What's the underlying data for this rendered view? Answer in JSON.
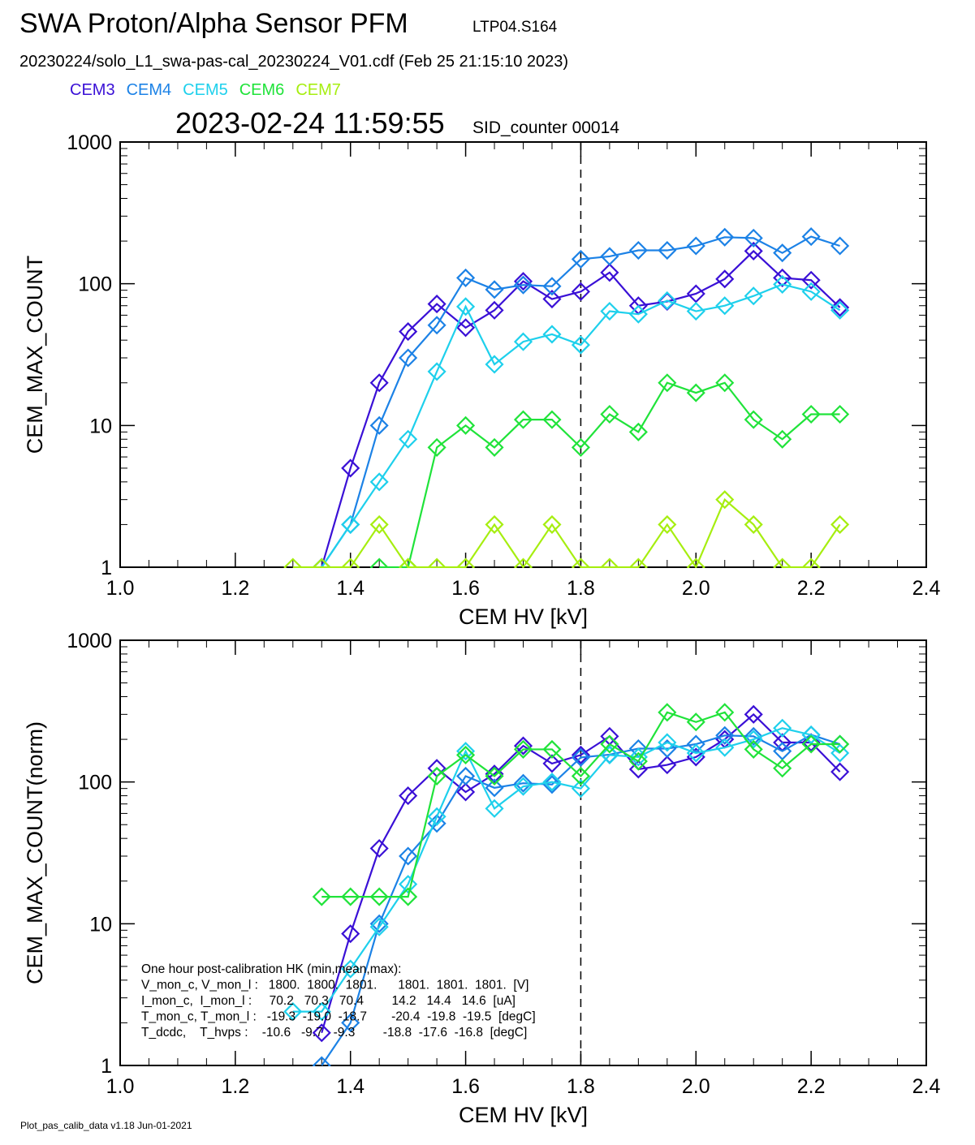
{
  "header": {
    "title": "SWA Proton/Alpha Sensor PFM",
    "subtitle": "LTP04.S164",
    "filename": "20230224/solo_L1_swa-pas-cal_20230224_V01.cdf  (Feb 25 21:15:10 2023)",
    "datetime": "2023-02-24 11:59:55",
    "sid_counter": "SID_counter 00014"
  },
  "legend": [
    {
      "name": "CEM3",
      "color": "#3a10d6"
    },
    {
      "name": "CEM4",
      "color": "#1c82e6"
    },
    {
      "name": "CEM5",
      "color": "#1ed0ec"
    },
    {
      "name": "CEM6",
      "color": "#20e33a"
    },
    {
      "name": "CEM7",
      "color": "#a6ee10"
    }
  ],
  "footer": "Plot_pas_calib_data v1.18 Jun-01-2021",
  "hk_box": {
    "lines": [
      "One hour post-calibration HK (min,mean,max):",
      "V_mon_c, V_mon_l :   1800.  1800.  1801.      1801.  1801.  1801.  [V]",
      "I_mon_c,  I_mon_l :     70.2   70.3   70.4        14.2   14.4   14.6  [uA]",
      "T_mon_c, T_mon_l :   -19.3  -19.0  -18.7       -20.4  -19.8  -19.5  [degC]",
      "T_dcdc,    T_hvps :    -10.6   -9.7   -9.3        -18.8  -17.6  -16.8  [degC]"
    ]
  },
  "chart_data": [
    {
      "type": "line",
      "title": "",
      "xlabel": "CEM HV [kV]",
      "ylabel": "CEM_MAX_COUNT",
      "xlim": [
        1.0,
        2.4
      ],
      "ylim": [
        1,
        1000
      ],
      "yscale": "log",
      "x_ticks": [
        "1.0",
        "1.2",
        "1.4",
        "1.6",
        "1.8",
        "2.0",
        "2.2",
        "2.4"
      ],
      "y_ticks": [
        "1",
        "10",
        "100",
        "1000"
      ],
      "vline_x": 1.8,
      "series": [
        {
          "name": "CEM3",
          "color": "#3a10d6",
          "x": [
            1.35,
            1.4,
            1.45,
            1.5,
            1.55,
            1.6,
            1.65,
            1.7,
            1.75,
            1.8,
            1.85,
            1.9,
            1.95,
            2.0,
            2.05,
            2.1,
            2.15,
            2.2,
            2.25
          ],
          "y": [
            1,
            5,
            20,
            46,
            72,
            49,
            65,
            104,
            78,
            88,
            120,
            70,
            75,
            85,
            108,
            170,
            110,
            106,
            68
          ]
        },
        {
          "name": "CEM4",
          "color": "#1c82e6",
          "x": [
            1.35,
            1.4,
            1.45,
            1.5,
            1.55,
            1.6,
            1.65,
            1.7,
            1.75,
            1.8,
            1.85,
            1.9,
            1.95,
            2.0,
            2.05,
            2.1,
            2.15,
            2.2,
            2.25
          ],
          "y": [
            1,
            2,
            10,
            30,
            51,
            110,
            91,
            98,
            96,
            149,
            156,
            172,
            172,
            185,
            213,
            210,
            165,
            215,
            185
          ]
        },
        {
          "name": "CEM5",
          "color": "#1ed0ec",
          "x": [
            1.35,
            1.4,
            1.45,
            1.5,
            1.55,
            1.6,
            1.65,
            1.7,
            1.75,
            1.8,
            1.85,
            1.9,
            1.95,
            2.0,
            2.05,
            2.1,
            2.15,
            2.2,
            2.25
          ],
          "y": [
            1,
            2,
            4,
            8,
            24,
            69,
            27,
            39,
            44,
            37,
            64,
            61,
            76,
            64,
            70,
            82,
            99,
            88,
            65
          ]
        },
        {
          "name": "CEM6",
          "color": "#20e33a",
          "x": [
            1.45,
            1.5,
            1.55,
            1.6,
            1.65,
            1.7,
            1.75,
            1.8,
            1.85,
            1.9,
            1.95,
            2.0,
            2.05,
            2.1,
            2.15,
            2.2,
            2.25
          ],
          "y": [
            1,
            1,
            7,
            10,
            7,
            11,
            11,
            7,
            12,
            9,
            20,
            17,
            20,
            11,
            8,
            12,
            12
          ]
        },
        {
          "name": "CEM7",
          "color": "#a6ee10",
          "x": [
            1.3,
            1.35,
            1.4,
            1.45,
            1.5,
            1.55,
            1.6,
            1.65,
            1.7,
            1.75,
            1.8,
            1.85,
            1.9,
            1.95,
            2.0,
            2.05,
            2.1,
            2.15,
            2.2,
            2.25
          ],
          "y": [
            1,
            1,
            1,
            2,
            1,
            1,
            1,
            2,
            1,
            2,
            1,
            1,
            1,
            2,
            1,
            3,
            2,
            1,
            1,
            2
          ]
        }
      ]
    },
    {
      "type": "line",
      "title": "",
      "xlabel": "CEM HV [kV]",
      "ylabel": "CEM_MAX_COUNT(norm)",
      "xlim": [
        1.0,
        2.4
      ],
      "ylim": [
        1,
        1000
      ],
      "yscale": "log",
      "x_ticks": [
        "1.0",
        "1.2",
        "1.4",
        "1.6",
        "1.8",
        "2.0",
        "2.2",
        "2.4"
      ],
      "y_ticks": [
        "1",
        "10",
        "100",
        "1000"
      ],
      "vline_x": 1.8,
      "series": [
        {
          "name": "CEM3",
          "color": "#3a10d6",
          "x": [
            1.35,
            1.4,
            1.45,
            1.5,
            1.55,
            1.6,
            1.65,
            1.7,
            1.75,
            1.8,
            1.85,
            1.9,
            1.95,
            2.0,
            2.05,
            2.1,
            2.15,
            2.2,
            2.25
          ],
          "y": [
            1.7,
            8.5,
            34,
            80,
            125,
            85,
            114,
            180,
            135,
            155,
            210,
            123,
            132,
            150,
            200,
            300,
            190,
            190,
            118
          ]
        },
        {
          "name": "CEM4",
          "color": "#1c82e6",
          "x": [
            1.35,
            1.4,
            1.45,
            1.5,
            1.55,
            1.6,
            1.65,
            1.7,
            1.75,
            1.8,
            1.85,
            1.9,
            1.95,
            2.0,
            2.05,
            2.1,
            2.15,
            2.2,
            2.25
          ],
          "y": [
            1,
            2,
            10,
            30,
            51,
            110,
            91,
            98,
            96,
            149,
            156,
            172,
            172,
            185,
            213,
            210,
            165,
            215,
            185
          ]
        },
        {
          "name": "CEM5",
          "color": "#1ed0ec",
          "x": [
            1.3,
            1.35,
            1.4,
            1.45,
            1.5,
            1.55,
            1.6,
            1.65,
            1.7,
            1.75,
            1.8,
            1.85,
            1.9,
            1.95,
            2.0,
            2.05,
            2.1,
            2.15,
            2.2,
            2.25
          ],
          "y": [
            2.4,
            2.4,
            4.8,
            9.5,
            19,
            57,
            165,
            65,
            93,
            100,
            90,
            155,
            150,
            190,
            160,
            175,
            200,
            240,
            215,
            160
          ]
        },
        {
          "name": "CEM6",
          "color": "#20e33a",
          "x": [
            1.35,
            1.4,
            1.45,
            1.5,
            1.55,
            1.6,
            1.65,
            1.7,
            1.75,
            1.8,
            1.85,
            1.9,
            1.95,
            2.0,
            2.05,
            2.1,
            2.15,
            2.2,
            2.25
          ],
          "y": [
            15.5,
            15.5,
            15.5,
            15.5,
            110,
            155,
            110,
            170,
            170,
            110,
            185,
            140,
            310,
            265,
            310,
            170,
            125,
            185,
            185
          ]
        }
      ]
    }
  ]
}
